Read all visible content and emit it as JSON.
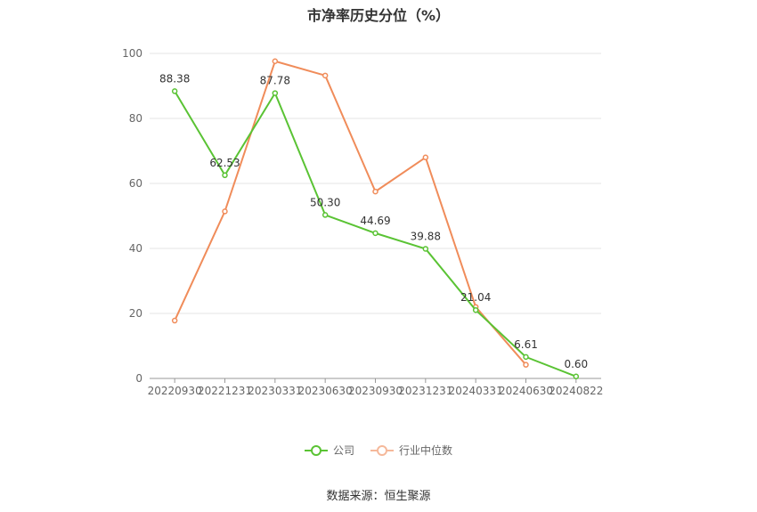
{
  "chart_data": {
    "type": "line",
    "title": "市净率历史分位（%）",
    "categories": [
      "20220930",
      "20221231",
      "20230331",
      "20230630",
      "20230930",
      "20231231",
      "20240331",
      "20240630",
      "20240822"
    ],
    "ylim": [
      0,
      100
    ],
    "yticks": [
      0,
      20,
      40,
      60,
      80,
      100
    ],
    "grid": true,
    "legend_position": "bottom",
    "series": [
      {
        "name": "公司",
        "color": "#5ac334",
        "values": [
          88.38,
          62.53,
          87.78,
          50.3,
          44.69,
          39.88,
          21.04,
          6.61,
          0.6
        ],
        "labels": [
          "88.38",
          "62.53",
          "87.78",
          "50.30",
          "44.69",
          "39.88",
          "21.04",
          "6.61",
          "0.60"
        ]
      },
      {
        "name": "行业中位数",
        "color": "#f08c5a",
        "values": [
          17.8,
          51.4,
          97.6,
          93.2,
          57.5,
          68.0,
          22.0,
          4.2,
          null
        ]
      }
    ]
  },
  "source": "数据来源：恒生聚源"
}
